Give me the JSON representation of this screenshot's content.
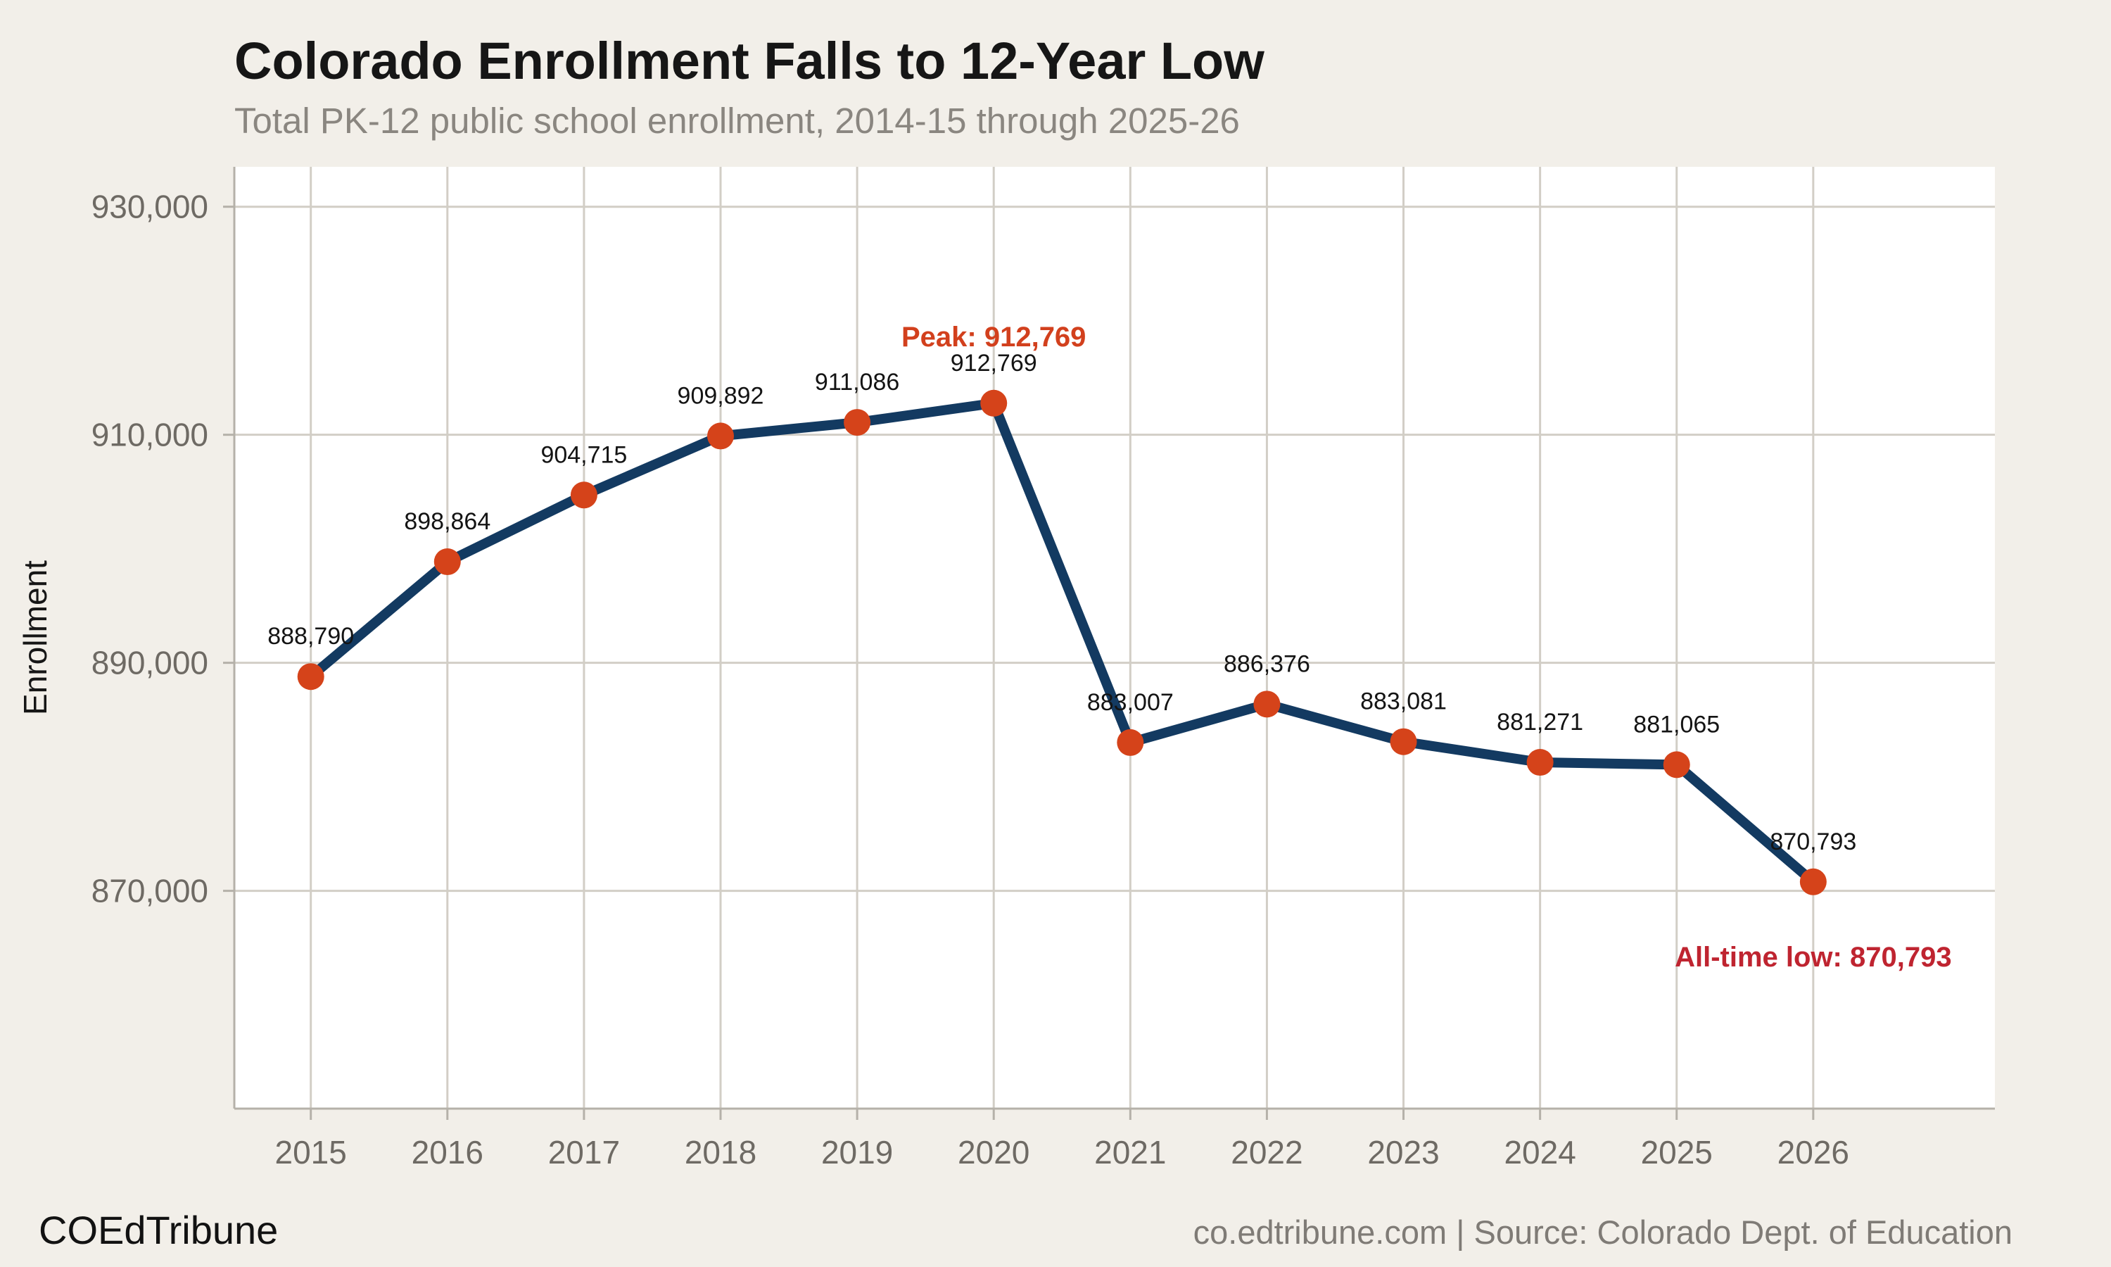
{
  "header": {
    "title": "Colorado Enrollment Falls to 12-Year Low",
    "subtitle": "Total PK-12 public school enrollment, 2014-15 through 2025-26"
  },
  "footer": {
    "brand": "COEdTribune",
    "source": "co.edtribune.com | Source: Colorado Dept. of Education"
  },
  "chart_data": {
    "type": "line",
    "title": "Colorado Enrollment Falls to 12-Year Low",
    "subtitle": "Total PK-12 public school enrollment, 2014-15 through 2025-26",
    "xlabel": "",
    "ylabel": "Enrollment",
    "x": [
      2015,
      2016,
      2017,
      2018,
      2019,
      2020,
      2021,
      2022,
      2023,
      2024,
      2025,
      2026
    ],
    "series": [
      {
        "name": "Total PK-12 public school enrollment",
        "values": [
          888790,
          898864,
          904715,
          909892,
          911086,
          912769,
          883007,
          886376,
          883081,
          881271,
          881065,
          870793
        ],
        "point_labels": [
          "888,790",
          "898,864",
          "904,715",
          "909,892",
          "911,086",
          "912,769",
          "883,007",
          "886,376",
          "883,081",
          "881,271",
          "881,065",
          "870,793"
        ]
      }
    ],
    "x_ticks": {
      "values": [
        2015,
        2016,
        2017,
        2018,
        2019,
        2020,
        2021,
        2022,
        2023,
        2024,
        2025,
        2026
      ],
      "labels": [
        "2015",
        "2016",
        "2017",
        "2018",
        "2019",
        "2020",
        "2021",
        "2022",
        "2023",
        "2024",
        "2025",
        "2026"
      ]
    },
    "y_ticks": {
      "values": [
        870000,
        890000,
        910000,
        930000
      ],
      "labels": [
        "870,000",
        "890,000",
        "910,000",
        "930,000"
      ]
    },
    "xlim": [
      2014.44,
      2027.33
    ],
    "ylim": [
      850900,
      933500
    ],
    "grid": true,
    "legend": false,
    "annotations": [
      {
        "id": "peak",
        "text": "Peak: 912,769",
        "x": 2020,
        "y": 912769,
        "dy": -81,
        "color": "#d2401d"
      },
      {
        "id": "low",
        "text": "All-time low: 870,793",
        "x": 2026,
        "y": 870793,
        "dy": 120,
        "color": "#bf2430"
      }
    ],
    "colors": {
      "background": "#f2efe9",
      "plot_background": "#ffffff",
      "grid": "#d2cec6",
      "axis": "#b5b1a9",
      "tick_label": "#6e6a64",
      "line": "#133a61",
      "marker": "#d5431a",
      "data_label": "#141414",
      "axis_title": "#161616"
    }
  }
}
